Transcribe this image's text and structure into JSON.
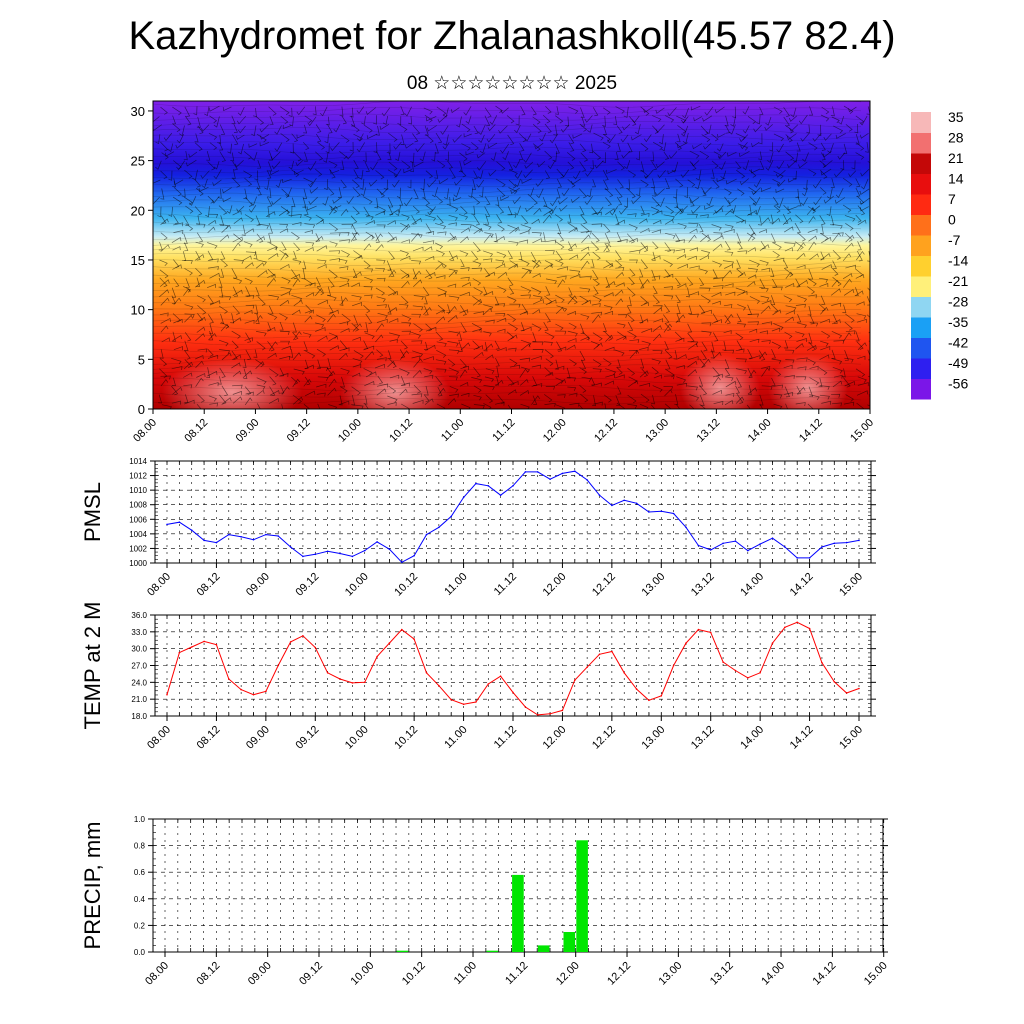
{
  "title": "Kazhydromet for Zhalanashkoll(45.57 82.4)",
  "subtitle": "08 ☆☆☆☆☆☆☆☆ 2025",
  "time_ticks": [
    "08.00",
    "08.12",
    "09.00",
    "09.12",
    "10.00",
    "10.12",
    "11.00",
    "11.12",
    "12.00",
    "12.12",
    "13.00",
    "13.12",
    "14.00",
    "14.12",
    "15.00"
  ],
  "colors": {
    "pmsl": "#0000ff",
    "temp": "#ff0000",
    "precip": "#00e600"
  },
  "chart_data": [
    {
      "type": "heatmap",
      "name": "upper-air cross section",
      "yticks": [
        "0",
        "5",
        "10",
        "15",
        "20",
        "25",
        "30"
      ],
      "ylim": [
        0,
        31
      ],
      "colorbar": {
        "labels": [
          "35",
          "28",
          "21",
          "14",
          "7",
          "0",
          "-7",
          "-14",
          "-21",
          "-28",
          "-35",
          "-42",
          "-49",
          "-56"
        ],
        "range": [
          -63,
          42
        ],
        "colors": [
          "#7b16e8",
          "#2e1ff0",
          "#1f55f0",
          "#1aa0f5",
          "#8fd6f2",
          "#fff07a",
          "#ffd02e",
          "#ffa21e",
          "#ff701a",
          "#ff2a12",
          "#e80e0e",
          "#c40808",
          "#f27070",
          "#f7b8b8"
        ]
      }
    },
    {
      "type": "line",
      "ylabel": "PMSL",
      "ylim": [
        1000,
        1014
      ],
      "yticks": [
        "1000",
        "1002",
        "1004",
        "1006",
        "1008",
        "1010",
        "1012",
        "1014"
      ],
      "x_start": 0,
      "x_step": 3,
      "values": [
        1005.3,
        1005.6,
        1004.5,
        1003.1,
        1002.8,
        1003.9,
        1003.6,
        1003.2,
        1003.9,
        1003.7,
        1002.2,
        1000.9,
        1001.2,
        1001.6,
        1001.3,
        1000.9,
        1001.7,
        1002.9,
        1001.9,
        1000.1,
        1001.0,
        1003.9,
        1004.9,
        1006.4,
        1009.0,
        1010.9,
        1010.6,
        1009.3,
        1010.6,
        1012.5,
        1012.5,
        1011.5,
        1012.3,
        1012.6,
        1011.4,
        1009.3,
        1007.9,
        1008.6,
        1008.2,
        1007.0,
        1007.1,
        1006.8,
        1004.9,
        1002.4,
        1001.8,
        1002.7,
        1003.0,
        1001.7,
        1002.6,
        1003.4,
        1002.2,
        1000.7,
        1000.7,
        1002.2,
        1002.7,
        1002.8,
        1003.1
      ]
    },
    {
      "type": "line",
      "ylabel": "TEMP at 2 M",
      "ylim": [
        18,
        36
      ],
      "yticks": [
        "18.0",
        "21.0",
        "24.0",
        "27.0",
        "30.0",
        "33.0",
        "36.0"
      ],
      "x_start": 0,
      "x_step": 3,
      "values": [
        21.8,
        29.3,
        30.3,
        31.3,
        30.7,
        24.6,
        22.7,
        21.8,
        22.4,
        27.0,
        31.2,
        32.3,
        30.2,
        25.7,
        24.6,
        23.9,
        24.0,
        28.6,
        31.0,
        33.4,
        31.7,
        25.7,
        23.4,
        20.9,
        20.1,
        20.5,
        23.7,
        25.1,
        22.2,
        19.6,
        18.2,
        18.4,
        19.0,
        24.4,
        26.7,
        29.0,
        29.5,
        25.7,
        22.8,
        20.8,
        21.6,
        27.0,
        31.0,
        33.4,
        32.9,
        27.6,
        26.1,
        24.8,
        25.7,
        31.0,
        33.8,
        34.7,
        33.6,
        27.5,
        24.1,
        22.1,
        22.9
      ]
    },
    {
      "type": "bar",
      "ylabel": "PRECIP, mm",
      "ylim": [
        0,
        1.0
      ],
      "yticks": [
        "0.0",
        "0.2",
        "0.4",
        "0.6",
        "0.8",
        "1.0"
      ],
      "x_start": 1.5,
      "x_step": 3,
      "values": [
        0,
        0,
        0,
        0,
        0,
        0,
        0,
        0,
        0,
        0,
        0,
        0,
        0,
        0,
        0,
        0,
        0,
        0,
        0.01,
        0,
        0,
        0,
        0,
        0,
        0,
        0.01,
        0,
        0.58,
        0,
        0.05,
        0,
        0.15,
        0.84,
        0,
        0,
        0,
        0,
        0,
        0,
        0,
        0,
        0,
        0,
        0,
        0,
        0,
        0,
        0,
        0,
        0,
        0,
        0,
        0,
        0,
        0,
        0
      ]
    }
  ]
}
